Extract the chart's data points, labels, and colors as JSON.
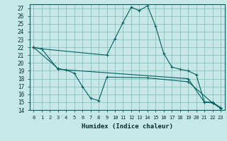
{
  "title": "",
  "xlabel": "Humidex (Indice chaleur)",
  "bg_color": "#c8e8e8",
  "grid_color": "#80b8b8",
  "line_color": "#006060",
  "xlim": [
    -0.5,
    23.5
  ],
  "ylim": [
    14,
    27.5
  ],
  "xticks": [
    0,
    1,
    2,
    3,
    4,
    5,
    6,
    7,
    8,
    9,
    10,
    11,
    12,
    13,
    14,
    15,
    16,
    17,
    18,
    19,
    20,
    21,
    22,
    23
  ],
  "yticks": [
    14,
    15,
    16,
    17,
    18,
    19,
    20,
    21,
    22,
    23,
    24,
    25,
    26,
    27
  ],
  "line1_x": [
    0,
    1,
    9,
    10,
    11,
    12,
    13,
    14,
    15,
    16,
    17,
    18,
    19,
    20,
    21,
    22,
    23
  ],
  "line1_y": [
    22,
    21.8,
    21,
    23.1,
    25.2,
    27.1,
    26.7,
    27.3,
    24.7,
    21.2,
    19.5,
    19.2,
    19.0,
    18.5,
    15,
    15,
    14.3
  ],
  "line2_x": [
    0,
    1,
    3,
    19,
    21,
    22,
    23
  ],
  "line2_y": [
    22,
    21.8,
    19.2,
    18.0,
    15.0,
    14.9,
    14.3
  ],
  "line3_x": [
    0,
    3,
    4,
    5,
    6,
    7,
    8,
    9,
    14,
    19,
    22,
    23
  ],
  "line3_y": [
    22,
    19.3,
    19.1,
    18.7,
    17.0,
    15.5,
    15.2,
    18.2,
    18.1,
    17.6,
    14.9,
    14.2
  ]
}
